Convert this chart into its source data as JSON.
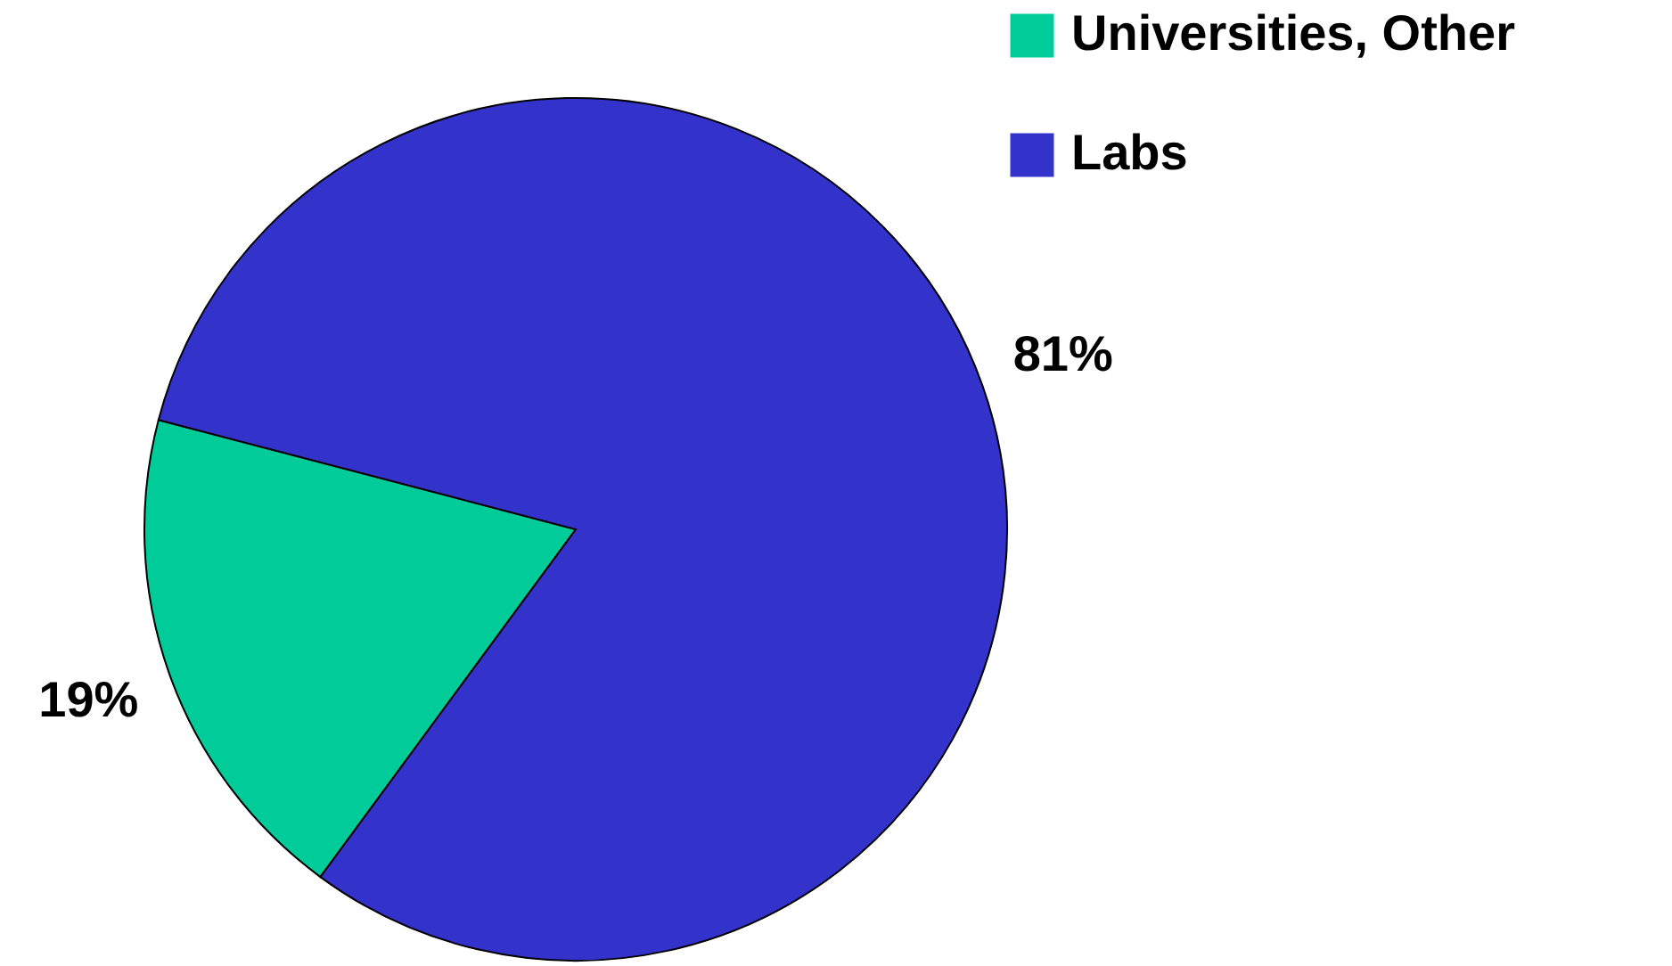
{
  "chart_data": {
    "type": "pie",
    "categories": [
      "Universities, Other",
      "Labs"
    ],
    "values": [
      19,
      81
    ],
    "colors": [
      "#00cc99",
      "#3333cc"
    ],
    "value_labels": [
      "19%",
      "81%"
    ],
    "legend": "top right"
  }
}
